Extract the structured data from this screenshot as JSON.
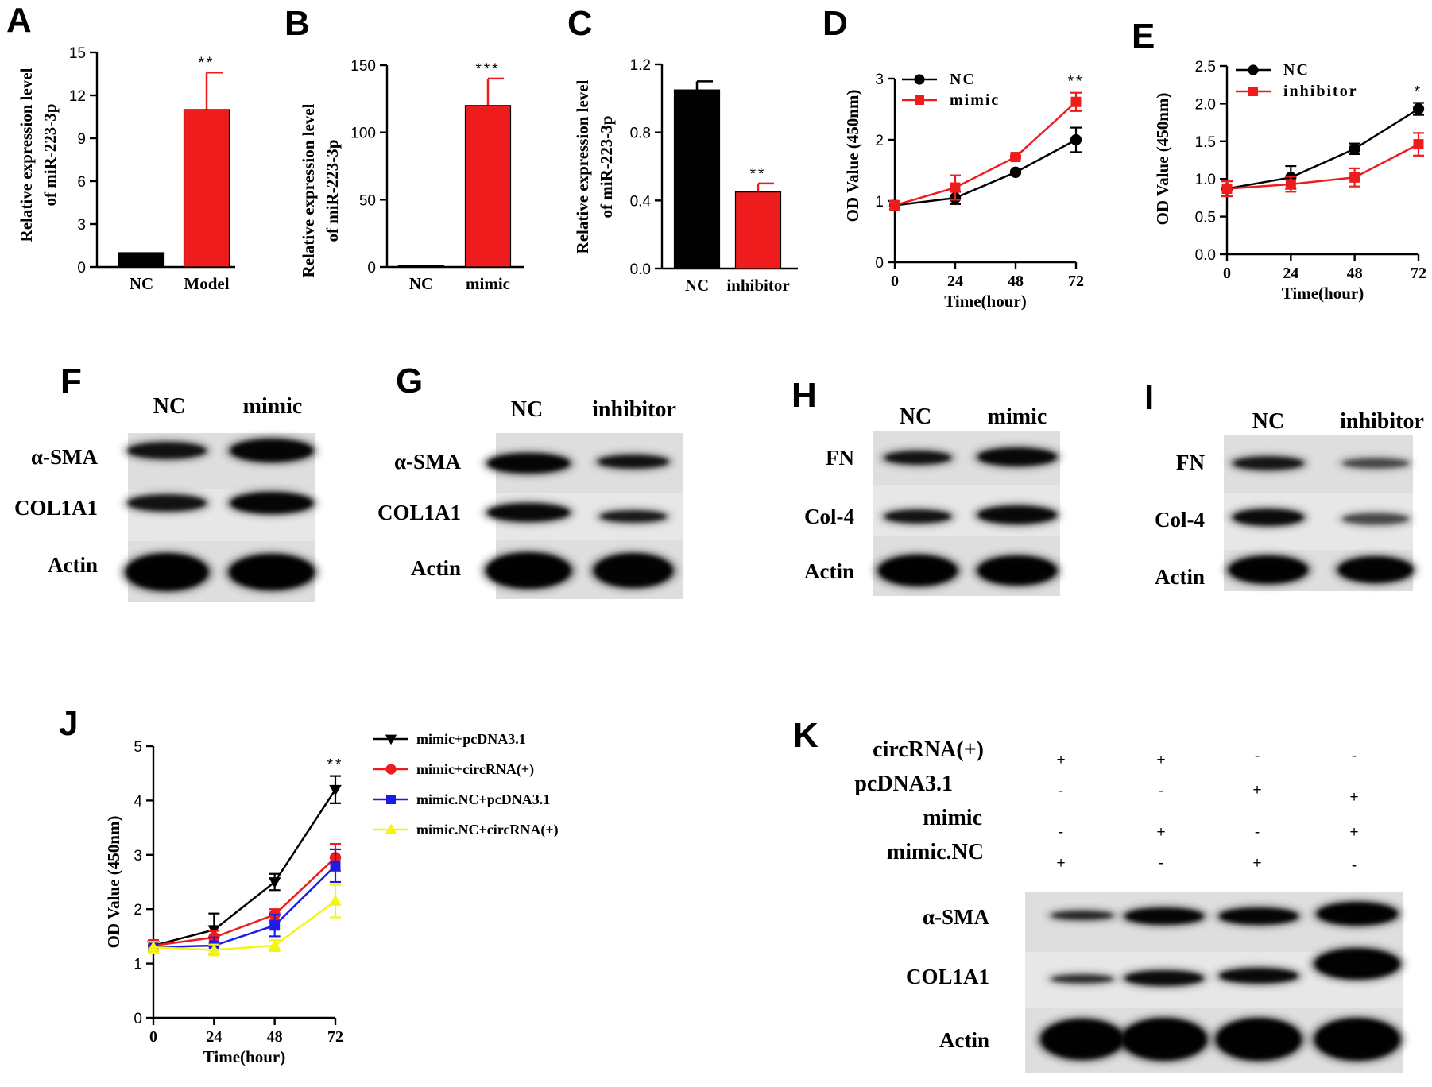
{
  "panel_labels": [
    "A",
    "B",
    "C",
    "D",
    "E",
    "F",
    "G",
    "H",
    "I",
    "J",
    "K"
  ],
  "chart_data": [
    {
      "panel": "A",
      "type": "bar",
      "ylabel_line1": "Relative expression level",
      "ylabel_line2": "of miR-223-3p",
      "categories": [
        "NC",
        "Model"
      ],
      "values": [
        1,
        11.0
      ],
      "errors": [
        0,
        2.6
      ],
      "colors": [
        "#000000",
        "#ee1c1c"
      ],
      "ylim": [
        0,
        15
      ],
      "yticks": [
        "0",
        "3",
        "6",
        "9",
        "12",
        "15"
      ],
      "annotations": [
        "",
        "**"
      ]
    },
    {
      "panel": "B",
      "type": "bar",
      "ylabel_line1": "Relative expression level",
      "ylabel_line2": "of miR-223-3p",
      "categories": [
        "NC",
        "mimic"
      ],
      "values": [
        1,
        120
      ],
      "errors": [
        0,
        20
      ],
      "colors": [
        "#000000",
        "#ee1c1c"
      ],
      "ylim": [
        0,
        150
      ],
      "yticks": [
        "0",
        "50",
        "100",
        "150"
      ],
      "annotations": [
        "",
        "***"
      ]
    },
    {
      "panel": "C",
      "type": "bar",
      "ylabel_line1": "Relative expression level",
      "ylabel_line2": "of miR-223-3p",
      "categories": [
        "NC",
        "inhibitor"
      ],
      "values": [
        1.05,
        0.45
      ],
      "errors": [
        0.05,
        0.05
      ],
      "colors": [
        "#000000",
        "#ee1c1c"
      ],
      "ylim": [
        0,
        1.2
      ],
      "yticks": [
        "0.0",
        "0.4",
        "0.8",
        "1.2"
      ],
      "annotations": [
        "",
        "**"
      ]
    },
    {
      "panel": "D",
      "type": "line",
      "ylabel": "OD Value (450nm)",
      "xlabel": "Time(hour)",
      "x": [
        0,
        24,
        48,
        72
      ],
      "xticks": [
        "0",
        "24",
        "48",
        "72"
      ],
      "ylim": [
        0,
        3
      ],
      "yticks": [
        "0",
        "1",
        "2",
        "3"
      ],
      "legend": "top-left",
      "series": [
        {
          "name": "NC",
          "color": "#000000",
          "marker": "circle",
          "values": [
            0.93,
            1.05,
            1.47,
            2.0
          ],
          "errors": [
            0.07,
            0.1,
            0.02,
            0.2
          ]
        },
        {
          "name": "mimic",
          "color": "#ee1c1c",
          "marker": "square",
          "values": [
            0.93,
            1.22,
            1.72,
            2.62
          ],
          "errors": [
            0.07,
            0.2,
            0.02,
            0.15
          ]
        }
      ],
      "annotation": {
        "x": 72,
        "text": "**"
      }
    },
    {
      "panel": "E",
      "type": "line",
      "ylabel": "OD Value (450nm)",
      "xlabel": "Time(hour)",
      "x": [
        0,
        24,
        48,
        72
      ],
      "xticks": [
        "0",
        "24",
        "48",
        "72"
      ],
      "ylim": [
        0,
        2.5
      ],
      "yticks": [
        "0.0",
        "0.5",
        "1.0",
        "1.5",
        "2.0",
        "2.5"
      ],
      "legend": "top-left",
      "series": [
        {
          "name": "NC",
          "color": "#000000",
          "marker": "circle",
          "values": [
            0.87,
            1.02,
            1.4,
            1.93
          ],
          "errors": [
            0.1,
            0.15,
            0.07,
            0.08
          ]
        },
        {
          "name": "inhibitor",
          "color": "#ee1c1c",
          "marker": "square",
          "values": [
            0.87,
            0.93,
            1.02,
            1.46
          ],
          "errors": [
            0.1,
            0.1,
            0.12,
            0.15
          ]
        }
      ],
      "annotation": {
        "x": 72,
        "text": "*"
      }
    },
    {
      "panel": "J",
      "type": "line",
      "ylabel": "OD Value (450nm)",
      "xlabel": "Time(hour)",
      "x": [
        0,
        24,
        48,
        72
      ],
      "xticks": [
        "0",
        "24",
        "48",
        "72"
      ],
      "ylim": [
        0,
        5
      ],
      "yticks": [
        "0",
        "1",
        "2",
        "3",
        "4",
        "5"
      ],
      "legend": "right",
      "series": [
        {
          "name": "mimic+pcDNA3.1",
          "color": "#000000",
          "marker": "triangle-down",
          "values": [
            1.33,
            1.62,
            2.5,
            4.2
          ],
          "errors": [
            0.1,
            0.3,
            0.15,
            0.25
          ]
        },
        {
          "name": "mimic+circRNA(+)",
          "color": "#ee1c1c",
          "marker": "circle",
          "values": [
            1.33,
            1.48,
            1.9,
            2.95
          ],
          "errors": [
            0.1,
            0.12,
            0.1,
            0.25
          ]
        },
        {
          "name": "mimic.NC+pcDNA3.1",
          "color": "#1c1ce8",
          "marker": "square",
          "values": [
            1.3,
            1.33,
            1.7,
            2.8
          ],
          "errors": [
            0.1,
            0.15,
            0.2,
            0.3
          ]
        },
        {
          "name": "mimic.NC+circRNA(+)",
          "color": "#f5f514",
          "marker": "triangle-up",
          "values": [
            1.3,
            1.25,
            1.33,
            2.15
          ],
          "errors": [
            0.1,
            0.1,
            0.1,
            0.3
          ]
        }
      ],
      "annotation": {
        "x": 72,
        "text": "**"
      }
    }
  ],
  "blots": {
    "F": {
      "lanes": [
        "NC",
        "mimic"
      ],
      "rows": [
        "α-SMA",
        "COL1A1",
        "Actin"
      ]
    },
    "G": {
      "lanes": [
        "NC",
        "inhibitor"
      ],
      "rows": [
        "α-SMA",
        "COL1A1",
        "Actin"
      ]
    },
    "H": {
      "lanes": [
        "NC",
        "mimic"
      ],
      "rows": [
        "FN",
        "Col-4",
        "Actin"
      ]
    },
    "I": {
      "lanes": [
        "NC",
        "inhibitor"
      ],
      "rows": [
        "FN",
        "Col-4",
        "Actin"
      ]
    },
    "K": {
      "conditions": [
        {
          "label": "circRNA(+)",
          "signs": [
            "+",
            "+",
            "-",
            "-"
          ]
        },
        {
          "label": "pcDNA3.1",
          "signs": [
            "-",
            "-",
            "+",
            "+"
          ]
        },
        {
          "label": "mimic",
          "signs": [
            "-",
            "+",
            "-",
            "+"
          ]
        },
        {
          "label": "mimic.NC",
          "signs": [
            "+",
            "-",
            "+",
            "-"
          ]
        }
      ],
      "rows": [
        "α-SMA",
        "COL1A1",
        "Actin"
      ]
    }
  }
}
